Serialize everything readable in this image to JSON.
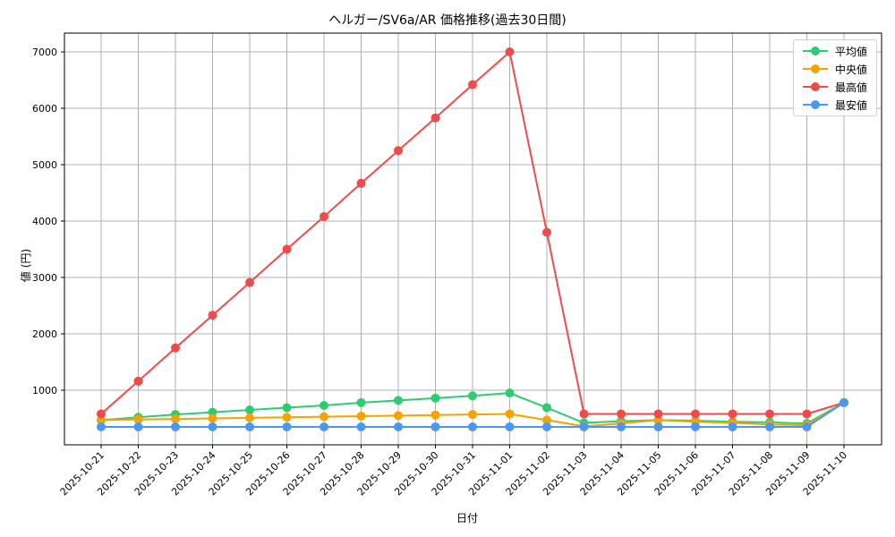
{
  "chart_data": {
    "type": "line",
    "title": "ヘルガー/SV6a/AR 価格推移(過去30日間)",
    "xlabel": "日付",
    "ylabel": "値 (円)",
    "ylim": [
      0,
      7350
    ],
    "yticks": [
      1000,
      2000,
      3000,
      4000,
      5000,
      6000,
      7000
    ],
    "grid": true,
    "legend_position": "upper right",
    "categories": [
      "2025-10-21",
      "2025-10-22",
      "2025-10-23",
      "2025-10-24",
      "2025-10-25",
      "2025-10-26",
      "2025-10-27",
      "2025-10-28",
      "2025-10-29",
      "2025-10-30",
      "2025-10-31",
      "2025-11-01",
      "2025-11-02",
      "2025-11-03",
      "2025-11-04",
      "2025-11-05",
      "2025-11-06",
      "2025-11-07",
      "2025-11-08",
      "2025-11-09",
      "2025-11-10"
    ],
    "series": [
      {
        "name": "平均値",
        "color": "#2ecc71",
        "values": [
          470,
          520,
          570,
          610,
          650,
          690,
          730,
          780,
          820,
          860,
          900,
          950,
          690,
          420,
          450,
          470,
          460,
          440,
          430,
          410,
          780
        ]
      },
      {
        "name": "中央値",
        "color": "#f5a300",
        "values": [
          470,
          480,
          490,
          500,
          510,
          520,
          530,
          540,
          550,
          560,
          570,
          580,
          470,
          360,
          410,
          470,
          440,
          420,
          390,
          380,
          780
        ]
      },
      {
        "name": "最高値",
        "color": "#f04b4b",
        "values": [
          580,
          1160,
          1750,
          2330,
          2910,
          3500,
          4080,
          4670,
          5250,
          5830,
          6420,
          7000,
          3800,
          580,
          580,
          580,
          580,
          580,
          580,
          580,
          780
        ]
      },
      {
        "name": "最安値",
        "color": "#4a98f5",
        "values": [
          350,
          350,
          350,
          350,
          350,
          350,
          350,
          350,
          350,
          350,
          350,
          350,
          350,
          350,
          350,
          350,
          350,
          350,
          350,
          350,
          780
        ]
      }
    ]
  },
  "legend": {
    "items": [
      {
        "label": "平均値",
        "color": "#2ecc71"
      },
      {
        "label": "中央値",
        "color": "#f5a300"
      },
      {
        "label": "最高値",
        "color": "#f04b4b"
      },
      {
        "label": "最安値",
        "color": "#4a98f5"
      }
    ]
  }
}
